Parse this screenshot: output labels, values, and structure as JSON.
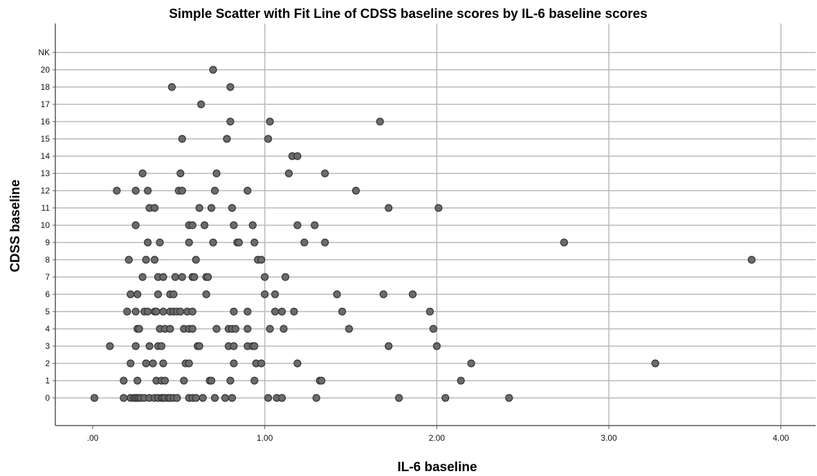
{
  "chart_data": {
    "type": "scatter",
    "title": "Simple Scatter with Fit Line of CDSS baseline scores by IL-6 baseline scores",
    "xlabel": "IL-6 baseline",
    "ylabel": "CDSS baseline",
    "x_ticks": [
      {
        "value": 0,
        "label": ".00"
      },
      {
        "value": 1,
        "label": "1.00"
      },
      {
        "value": 2,
        "label": "2.00"
      },
      {
        "value": 3,
        "label": "3.00"
      },
      {
        "value": 4,
        "label": "4.00"
      }
    ],
    "y_categories": [
      "0",
      "1",
      "2",
      "3",
      "4",
      "5",
      "6",
      "7",
      "8",
      "9",
      "10",
      "11",
      "12",
      "13",
      "14",
      "15",
      "16",
      "17",
      "18",
      "20",
      "NK"
    ],
    "xlim": [
      -0.23,
      4.2
    ],
    "grid": true,
    "marker_color": "#6b6b6b",
    "points": [
      {
        "x": 0.01,
        "y": "0"
      },
      {
        "x": 0.18,
        "y": "0"
      },
      {
        "x": 0.22,
        "y": "0"
      },
      {
        "x": 0.24,
        "y": "0"
      },
      {
        "x": 0.25,
        "y": "0"
      },
      {
        "x": 0.26,
        "y": "0"
      },
      {
        "x": 0.27,
        "y": "0"
      },
      {
        "x": 0.28,
        "y": "0"
      },
      {
        "x": 0.3,
        "y": "0"
      },
      {
        "x": 0.33,
        "y": "0"
      },
      {
        "x": 0.36,
        "y": "0"
      },
      {
        "x": 0.38,
        "y": "0"
      },
      {
        "x": 0.4,
        "y": "0"
      },
      {
        "x": 0.41,
        "y": "0"
      },
      {
        "x": 0.42,
        "y": "0"
      },
      {
        "x": 0.44,
        "y": "0"
      },
      {
        "x": 0.45,
        "y": "0"
      },
      {
        "x": 0.47,
        "y": "0"
      },
      {
        "x": 0.49,
        "y": "0"
      },
      {
        "x": 0.56,
        "y": "0"
      },
      {
        "x": 0.58,
        "y": "0"
      },
      {
        "x": 0.6,
        "y": "0"
      },
      {
        "x": 0.64,
        "y": "0"
      },
      {
        "x": 0.71,
        "y": "0"
      },
      {
        "x": 0.77,
        "y": "0"
      },
      {
        "x": 0.81,
        "y": "0"
      },
      {
        "x": 1.02,
        "y": "0"
      },
      {
        "x": 1.07,
        "y": "0"
      },
      {
        "x": 1.1,
        "y": "0"
      },
      {
        "x": 1.3,
        "y": "0"
      },
      {
        "x": 1.78,
        "y": "0"
      },
      {
        "x": 2.05,
        "y": "0"
      },
      {
        "x": 2.42,
        "y": "0"
      },
      {
        "x": 0.18,
        "y": "1"
      },
      {
        "x": 0.26,
        "y": "1"
      },
      {
        "x": 0.37,
        "y": "1"
      },
      {
        "x": 0.4,
        "y": "1"
      },
      {
        "x": 0.42,
        "y": "1"
      },
      {
        "x": 0.53,
        "y": "1"
      },
      {
        "x": 0.68,
        "y": "1"
      },
      {
        "x": 0.69,
        "y": "1"
      },
      {
        "x": 0.8,
        "y": "1"
      },
      {
        "x": 0.94,
        "y": "1"
      },
      {
        "x": 1.32,
        "y": "1"
      },
      {
        "x": 1.33,
        "y": "1"
      },
      {
        "x": 2.14,
        "y": "1"
      },
      {
        "x": 0.22,
        "y": "2"
      },
      {
        "x": 0.31,
        "y": "2"
      },
      {
        "x": 0.35,
        "y": "2"
      },
      {
        "x": 0.41,
        "y": "2"
      },
      {
        "x": 0.54,
        "y": "2"
      },
      {
        "x": 0.56,
        "y": "2"
      },
      {
        "x": 0.82,
        "y": "2"
      },
      {
        "x": 0.95,
        "y": "2"
      },
      {
        "x": 0.98,
        "y": "2"
      },
      {
        "x": 1.19,
        "y": "2"
      },
      {
        "x": 2.2,
        "y": "2"
      },
      {
        "x": 3.27,
        "y": "2"
      },
      {
        "x": 0.1,
        "y": "3"
      },
      {
        "x": 0.25,
        "y": "3"
      },
      {
        "x": 0.33,
        "y": "3"
      },
      {
        "x": 0.38,
        "y": "3"
      },
      {
        "x": 0.4,
        "y": "3"
      },
      {
        "x": 0.61,
        "y": "3"
      },
      {
        "x": 0.62,
        "y": "3"
      },
      {
        "x": 0.79,
        "y": "3"
      },
      {
        "x": 0.82,
        "y": "3"
      },
      {
        "x": 0.9,
        "y": "3"
      },
      {
        "x": 0.93,
        "y": "3"
      },
      {
        "x": 0.94,
        "y": "3"
      },
      {
        "x": 1.72,
        "y": "3"
      },
      {
        "x": 2.0,
        "y": "3"
      },
      {
        "x": 0.26,
        "y": "4"
      },
      {
        "x": 0.27,
        "y": "4"
      },
      {
        "x": 0.39,
        "y": "4"
      },
      {
        "x": 0.42,
        "y": "4"
      },
      {
        "x": 0.45,
        "y": "4"
      },
      {
        "x": 0.53,
        "y": "4"
      },
      {
        "x": 0.56,
        "y": "4"
      },
      {
        "x": 0.58,
        "y": "4"
      },
      {
        "x": 0.72,
        "y": "4"
      },
      {
        "x": 0.79,
        "y": "4"
      },
      {
        "x": 0.81,
        "y": "4"
      },
      {
        "x": 0.83,
        "y": "4"
      },
      {
        "x": 0.9,
        "y": "4"
      },
      {
        "x": 1.03,
        "y": "4"
      },
      {
        "x": 1.11,
        "y": "4"
      },
      {
        "x": 1.49,
        "y": "4"
      },
      {
        "x": 1.98,
        "y": "4"
      },
      {
        "x": 0.2,
        "y": "5"
      },
      {
        "x": 0.25,
        "y": "5"
      },
      {
        "x": 0.3,
        "y": "5"
      },
      {
        "x": 0.32,
        "y": "5"
      },
      {
        "x": 0.36,
        "y": "5"
      },
      {
        "x": 0.37,
        "y": "5"
      },
      {
        "x": 0.41,
        "y": "5"
      },
      {
        "x": 0.45,
        "y": "5"
      },
      {
        "x": 0.47,
        "y": "5"
      },
      {
        "x": 0.49,
        "y": "5"
      },
      {
        "x": 0.51,
        "y": "5"
      },
      {
        "x": 0.55,
        "y": "5"
      },
      {
        "x": 0.58,
        "y": "5"
      },
      {
        "x": 0.82,
        "y": "5"
      },
      {
        "x": 0.9,
        "y": "5"
      },
      {
        "x": 1.06,
        "y": "5"
      },
      {
        "x": 1.1,
        "y": "5"
      },
      {
        "x": 1.17,
        "y": "5"
      },
      {
        "x": 1.45,
        "y": "5"
      },
      {
        "x": 1.96,
        "y": "5"
      },
      {
        "x": 0.22,
        "y": "6"
      },
      {
        "x": 0.26,
        "y": "6"
      },
      {
        "x": 0.38,
        "y": "6"
      },
      {
        "x": 0.45,
        "y": "6"
      },
      {
        "x": 0.47,
        "y": "6"
      },
      {
        "x": 0.66,
        "y": "6"
      },
      {
        "x": 1.0,
        "y": "6"
      },
      {
        "x": 1.06,
        "y": "6"
      },
      {
        "x": 1.42,
        "y": "6"
      },
      {
        "x": 1.69,
        "y": "6"
      },
      {
        "x": 1.86,
        "y": "6"
      },
      {
        "x": 0.29,
        "y": "7"
      },
      {
        "x": 0.38,
        "y": "7"
      },
      {
        "x": 0.41,
        "y": "7"
      },
      {
        "x": 0.48,
        "y": "7"
      },
      {
        "x": 0.52,
        "y": "7"
      },
      {
        "x": 0.58,
        "y": "7"
      },
      {
        "x": 0.59,
        "y": "7"
      },
      {
        "x": 0.66,
        "y": "7"
      },
      {
        "x": 0.67,
        "y": "7"
      },
      {
        "x": 1.0,
        "y": "7"
      },
      {
        "x": 1.12,
        "y": "7"
      },
      {
        "x": 0.21,
        "y": "8"
      },
      {
        "x": 0.31,
        "y": "8"
      },
      {
        "x": 0.36,
        "y": "8"
      },
      {
        "x": 0.6,
        "y": "8"
      },
      {
        "x": 0.96,
        "y": "8"
      },
      {
        "x": 0.98,
        "y": "8"
      },
      {
        "x": 3.83,
        "y": "8"
      },
      {
        "x": 0.32,
        "y": "9"
      },
      {
        "x": 0.39,
        "y": "9"
      },
      {
        "x": 0.56,
        "y": "9"
      },
      {
        "x": 0.7,
        "y": "9"
      },
      {
        "x": 0.84,
        "y": "9"
      },
      {
        "x": 0.85,
        "y": "9"
      },
      {
        "x": 0.94,
        "y": "9"
      },
      {
        "x": 1.23,
        "y": "9"
      },
      {
        "x": 1.35,
        "y": "9"
      },
      {
        "x": 2.74,
        "y": "9"
      },
      {
        "x": 0.25,
        "y": "10"
      },
      {
        "x": 0.56,
        "y": "10"
      },
      {
        "x": 0.58,
        "y": "10"
      },
      {
        "x": 0.65,
        "y": "10"
      },
      {
        "x": 0.82,
        "y": "10"
      },
      {
        "x": 0.93,
        "y": "10"
      },
      {
        "x": 1.19,
        "y": "10"
      },
      {
        "x": 1.29,
        "y": "10"
      },
      {
        "x": 0.33,
        "y": "11"
      },
      {
        "x": 0.36,
        "y": "11"
      },
      {
        "x": 0.62,
        "y": "11"
      },
      {
        "x": 0.69,
        "y": "11"
      },
      {
        "x": 0.81,
        "y": "11"
      },
      {
        "x": 1.72,
        "y": "11"
      },
      {
        "x": 2.01,
        "y": "11"
      },
      {
        "x": 0.14,
        "y": "12"
      },
      {
        "x": 0.25,
        "y": "12"
      },
      {
        "x": 0.32,
        "y": "12"
      },
      {
        "x": 0.5,
        "y": "12"
      },
      {
        "x": 0.52,
        "y": "12"
      },
      {
        "x": 0.71,
        "y": "12"
      },
      {
        "x": 0.9,
        "y": "12"
      },
      {
        "x": 1.53,
        "y": "12"
      },
      {
        "x": 0.29,
        "y": "13"
      },
      {
        "x": 0.51,
        "y": "13"
      },
      {
        "x": 0.72,
        "y": "13"
      },
      {
        "x": 1.14,
        "y": "13"
      },
      {
        "x": 1.35,
        "y": "13"
      },
      {
        "x": 1.16,
        "y": "14"
      },
      {
        "x": 1.19,
        "y": "14"
      },
      {
        "x": 0.52,
        "y": "15"
      },
      {
        "x": 0.78,
        "y": "15"
      },
      {
        "x": 1.02,
        "y": "15"
      },
      {
        "x": 0.8,
        "y": "16"
      },
      {
        "x": 1.03,
        "y": "16"
      },
      {
        "x": 1.67,
        "y": "16"
      },
      {
        "x": 0.63,
        "y": "17"
      },
      {
        "x": 0.46,
        "y": "18"
      },
      {
        "x": 0.8,
        "y": "18"
      },
      {
        "x": 0.7,
        "y": "20"
      }
    ]
  }
}
